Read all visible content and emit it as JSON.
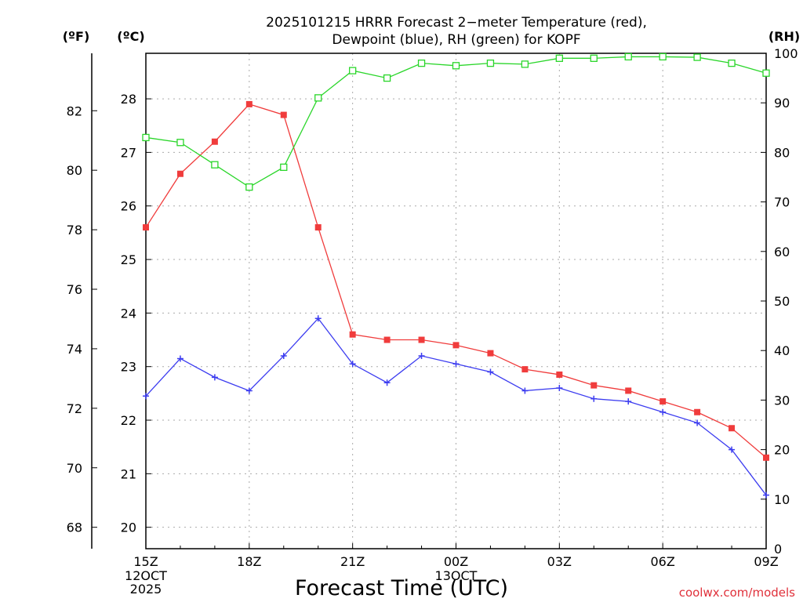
{
  "chart_data": {
    "type": "line",
    "title_line1": "2025101215 HRRR Forecast 2−meter Temperature (red),",
    "title_line2": "Dewpoint (blue), RH (green) for KOPF",
    "xlabel": "Forecast Time (UTC)",
    "x_ticks": [
      "15Z",
      "18Z",
      "21Z",
      "00Z",
      "03Z",
      "06Z",
      "09Z"
    ],
    "x_date_labels": [
      {
        "at": "15Z",
        "lines": [
          "12OCT",
          "2025"
        ]
      },
      {
        "at": "00Z",
        "lines": [
          "13OCT"
        ]
      }
    ],
    "x_hours": [
      "15Z",
      "16Z",
      "17Z",
      "18Z",
      "19Z",
      "20Z",
      "21Z",
      "22Z",
      "23Z",
      "00Z",
      "01Z",
      "02Z",
      "03Z",
      "04Z",
      "05Z",
      "06Z",
      "07Z",
      "08Z",
      "09Z"
    ],
    "axes": {
      "fahrenheit": {
        "label": "(ºF)",
        "ticks": [
          68,
          70,
          72,
          74,
          76,
          78,
          80,
          82
        ]
      },
      "celsius": {
        "label": "(ºC)",
        "ylim": [
          19.6,
          28.85
        ],
        "ticks": [
          20,
          21,
          22,
          23,
          24,
          25,
          26,
          27,
          28
        ]
      },
      "rh": {
        "label": "(RH)",
        "ylim": [
          0,
          100
        ],
        "ticks": [
          0,
          10,
          20,
          30,
          40,
          50,
          60,
          70,
          80,
          90,
          100
        ]
      }
    },
    "grid": true,
    "series": [
      {
        "color": "#f03c3c",
        "axis": "celsius",
        "marker": "filled-square",
        "values": [
          25.6,
          26.6,
          27.2,
          27.9,
          27.7,
          25.6,
          23.6,
          23.5,
          23.5,
          23.4,
          23.25,
          22.95,
          22.85,
          22.65,
          22.55,
          22.35,
          22.15,
          21.85,
          21.3
        ]
      },
      {
        "color": "#3c3cf0",
        "axis": "celsius",
        "marker": "plus",
        "values": [
          22.45,
          23.15,
          22.8,
          22.55,
          23.2,
          23.9,
          23.05,
          22.7,
          23.2,
          23.05,
          22.9,
          22.55,
          22.6,
          22.4,
          22.35,
          22.15,
          21.95,
          21.45,
          20.6
        ]
      },
      {
        "color": "#2ad62a",
        "axis": "rh",
        "marker": "open-square",
        "values": [
          83,
          82,
          77.5,
          73,
          77,
          91,
          96.5,
          95,
          98,
          97.5,
          98,
          97.8,
          99,
          99,
          99.3,
          99.3,
          99.2,
          98,
          96
        ]
      }
    ]
  },
  "credit": "coolwx.com/models"
}
